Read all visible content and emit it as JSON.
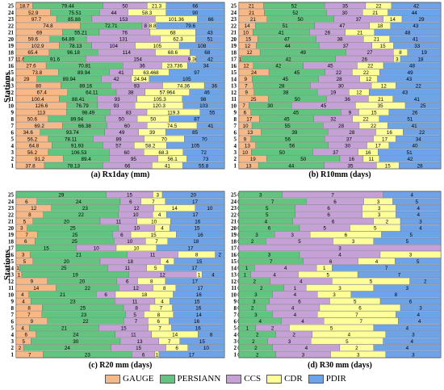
{
  "y_axis_label": "Stations",
  "legend": [
    {
      "name": "GAUGE",
      "color": "#f7b887"
    },
    {
      "name": "PERSIANN",
      "color": "#62c47e"
    },
    {
      "name": "CCS",
      "color": "#c5a1d7"
    },
    {
      "name": "CDR",
      "color": "#ffff99"
    },
    {
      "name": "PDIR",
      "color": "#6fa3e8"
    }
  ],
  "chart_data": [
    {
      "type": "bar",
      "stacked": "horizontal",
      "title": "(a) Rx1day (mm)",
      "ylabel": "Stations",
      "categories": [
        "25",
        "24",
        "23",
        "22",
        "21",
        "20",
        "19",
        "18",
        "17",
        "16",
        "15",
        "14",
        "13",
        "12",
        "11",
        "10",
        "9",
        "8",
        "7",
        "6",
        "5",
        "4",
        "3",
        "2",
        "1"
      ],
      "series": [
        {
          "name": "GAUGE",
          "values": [
            18.7,
            52.9,
            97.7,
            74.8,
            69,
            59.6,
            102.9,
            65.4,
            11.6,
            27.6,
            73.8,
            29,
            80,
            67.4,
            100.4,
            126.6,
            113,
            50.6,
            69.2,
            34.6,
            56.2,
            64.8,
            56.2,
            91.2,
            37.8
          ]
        },
        {
          "name": "PERSIANN",
          "values": [
            79.44,
            75.51,
            85.88,
            72.71,
            55.21,
            64.89,
            78.13,
            96.18,
            91.6,
            70.81,
            89.94,
            89.94,
            89.16,
            64.11,
            88.41,
            76.79,
            98.49,
            89.94,
            66.38,
            93.74,
            78.11,
            91.93,
            106.53,
            89.4,
            78.13
          ]
        },
        {
          "name": "CCS",
          "values": [
            50,
            44,
            153,
            8,
            76,
            131,
            104,
            114,
            154,
            36,
            41,
            42,
            93,
            38,
            93,
            93,
            83,
            50,
            60,
            49,
            89,
            57,
            60,
            95,
            66
          ]
        },
        {
          "name": "CDR",
          "values": [
            21.3,
            58.3,
            101.36,
            8.8,
            68,
            62.3,
            105,
            68.6,
            9.36,
            23.736,
            63.468,
            24.94,
            74.36,
            57.964,
            105.3,
            120.3,
            119.3,
            50,
            74.5,
            39,
            70,
            58.2,
            68.3,
            56.1,
            41
          ]
        },
        {
          "name": "PDIR",
          "values": [
            66,
            90,
            66,
            79.6,
            43,
            51,
            108,
            68,
            42,
            34,
            97,
            105,
            36,
            46,
            98,
            103,
            55,
            87,
            41,
            85,
            70,
            105,
            72,
            73,
            55.8
          ]
        }
      ]
    },
    {
      "type": "bar",
      "stacked": "horizontal",
      "title": "(b) R10mm (days)",
      "categories": [
        "25",
        "24",
        "23",
        "22",
        "21",
        "20",
        "19",
        "18",
        "17",
        "16",
        "15",
        "14",
        "13",
        "12",
        "11",
        "10",
        "9",
        "8",
        "7",
        "6",
        "5",
        "4",
        "3",
        "2",
        "1"
      ],
      "series": [
        {
          "name": "GAUGE",
          "values": [
            21,
            21,
            21,
            14,
            10,
            15,
            12,
            12,
            1,
            12,
            24,
            9,
            7,
            9,
            25,
            7,
            6,
            17,
            10,
            13,
            9,
            13,
            10,
            19,
            13
          ]
        },
        {
          "name": "PERSIANN",
          "values": [
            52,
            52,
            50,
            51,
            41,
            47,
            44,
            49,
            42,
            42,
            45,
            45,
            28,
            38,
            50,
            30,
            45,
            45,
            55,
            39,
            56,
            56,
            50,
            50,
            44
          ]
        },
        {
          "name": "CCS",
          "values": [
            35,
            30,
            37,
            47,
            26,
            38,
            37,
            27,
            26,
            45,
            22,
            28,
            30,
            19,
            36,
            45,
            9,
            32,
            28,
            28,
            37,
            30,
            37,
            16,
            35
          ]
        },
        {
          "name": "CDR",
          "values": [
            22,
            21,
            14,
            18,
            21,
            21,
            15,
            8,
            3,
            22,
            22,
            12,
            12,
            12,
            21,
            35,
            15,
            22,
            22,
            16,
            17,
            17,
            16,
            11,
            15
          ]
        },
        {
          "name": "PDIR",
          "values": [
            42,
            44,
            29,
            43,
            48,
            41,
            33,
            19,
            18,
            48,
            49,
            43,
            22,
            43,
            41,
            25,
            26,
            51,
            41,
            22,
            34,
            40,
            51,
            42,
            28
          ]
        }
      ]
    },
    {
      "type": "bar",
      "stacked": "horizontal",
      "title": "(c) R20 mm (days)",
      "categories": [
        "25",
        "24",
        "23",
        "22",
        "21",
        "20",
        "19",
        "18",
        "17",
        "16",
        "15",
        "14",
        "13",
        "12",
        "11",
        "10",
        "9",
        "8",
        "7",
        "6",
        "5",
        "4",
        "3",
        "2",
        "1"
      ],
      "series": [
        {
          "name": "GAUGE",
          "values": [
            0,
            6,
            12,
            8,
            5,
            3,
            7,
            6,
            0,
            3,
            5,
            1,
            1,
            9,
            14,
            4,
            4,
            8,
            7,
            9,
            4,
            6,
            5,
            2,
            7
          ]
        },
        {
          "name": "PERSIANN",
          "values": [
            29,
            24,
            23,
            22,
            20,
            25,
            25,
            25,
            15,
            21,
            20,
            25,
            19,
            20,
            22,
            21,
            23,
            25,
            23,
            22,
            21,
            24,
            30,
            24,
            23
          ]
        },
        {
          "name": "CCS",
          "values": [
            15,
            6,
            12,
            10,
            11,
            10,
            6,
            10,
            10,
            11,
            18,
            11,
            12,
            6,
            12,
            6,
            11,
            8,
            5,
            7,
            15,
            11,
            13,
            15,
            6
          ]
        },
        {
          "name": "CDR",
          "values": [
            3,
            7,
            14,
            4,
            10,
            4,
            15,
            7,
            10,
            8,
            4,
            5,
            1,
            8,
            8,
            18,
            4,
            7,
            8,
            6,
            7,
            14,
            7,
            6,
            1
          ]
        },
        {
          "name": "PDIR",
          "values": [
            20,
            17,
            10,
            17,
            16,
            15,
            16,
            18,
            17,
            2,
            15,
            17,
            4,
            17,
            17,
            16,
            15,
            16,
            14,
            16,
            16,
            8,
            15,
            10,
            17
          ]
        }
      ]
    },
    {
      "type": "bar",
      "stacked": "horizontal",
      "title": "(d) R30 mm (days)",
      "categories": [
        "25",
        "24",
        "23",
        "22",
        "21",
        "20",
        "19",
        "18",
        "17",
        "16",
        "15",
        "14",
        "13",
        "12",
        "11",
        "10",
        "9",
        "8",
        "7",
        "6",
        "5",
        "4",
        "3",
        "2",
        "1"
      ],
      "series": [
        {
          "name": "GAUGE",
          "values": [
            0,
            0,
            0,
            0,
            0,
            0,
            0,
            0,
            0,
            0,
            0,
            0,
            0,
            0,
            0,
            0,
            0,
            0,
            0,
            0,
            0,
            0,
            0,
            0,
            0
          ]
        },
        {
          "name": "PERSIANN",
          "values": [
            3,
            7,
            5,
            5,
            4,
            6,
            3,
            2,
            0,
            3,
            7,
            1,
            1,
            2,
            2,
            3,
            3,
            2,
            3,
            4,
            1,
            2,
            2,
            2,
            2
          ]
        },
        {
          "name": "CCS",
          "values": [
            7,
            6,
            6,
            6,
            6,
            5,
            3,
            5,
            3,
            4,
            6,
            4,
            4,
            4,
            1,
            4,
            6,
            4,
            4,
            4,
            2,
            2,
            3,
            4,
            3
          ]
        },
        {
          "name": "CDR",
          "values": [
            0,
            3,
            3,
            3,
            2,
            5,
            6,
            3,
            0,
            3,
            4,
            1,
            5,
            5,
            3,
            3,
            5,
            6,
            7,
            7,
            5,
            4,
            5,
            2,
            3
          ]
        },
        {
          "name": "PDIR",
          "values": [
            4,
            5,
            4,
            4,
            3,
            4,
            5,
            5,
            0,
            0,
            5,
            7,
            7,
            2,
            3,
            8,
            6,
            3,
            4,
            4,
            4,
            3,
            4,
            4,
            3
          ]
        }
      ]
    }
  ]
}
